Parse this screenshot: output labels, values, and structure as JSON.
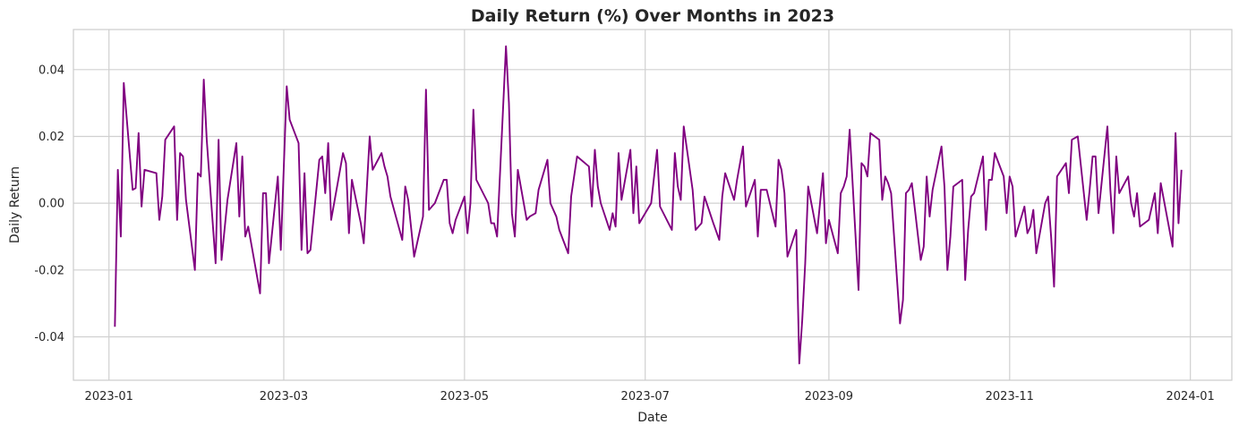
{
  "chart_data": {
    "type": "line",
    "title": "Daily Return (%) Over Months in 2023",
    "xlabel": "Date",
    "ylabel": "Daily Return",
    "xlim": [
      "2022-12-20",
      "2024-01-15"
    ],
    "ylim": [
      -0.053,
      0.052
    ],
    "grid": true,
    "x_tick_labels": [
      "2023-01",
      "2023-03",
      "2023-05",
      "2023-07",
      "2023-09",
      "2023-11",
      "2024-01"
    ],
    "y_tick_labels": [
      "-0.04",
      "-0.02",
      "0.00",
      "0.02",
      "0.04"
    ],
    "y_ticks": [
      -0.04,
      -0.02,
      0.0,
      0.02,
      0.04
    ],
    "series": [
      {
        "color": "#800080",
        "points": [
          [
            "2023-01-03",
            -0.037
          ],
          [
            "2023-01-04",
            0.01
          ],
          [
            "2023-01-05",
            -0.01
          ],
          [
            "2023-01-06",
            0.036
          ],
          [
            "2023-01-09",
            0.004
          ],
          [
            "2023-01-10",
            0.0045
          ],
          [
            "2023-01-11",
            0.021
          ],
          [
            "2023-01-12",
            -0.001
          ],
          [
            "2023-01-13",
            0.01
          ],
          [
            "2023-01-17",
            0.009
          ],
          [
            "2023-01-18",
            -0.005
          ],
          [
            "2023-01-19",
            0.002
          ],
          [
            "2023-01-20",
            0.019
          ],
          [
            "2023-01-23",
            0.023
          ],
          [
            "2023-01-24",
            -0.005
          ],
          [
            "2023-01-25",
            0.015
          ],
          [
            "2023-01-26",
            0.014
          ],
          [
            "2023-01-27",
            0.001
          ],
          [
            "2023-01-30",
            -0.02
          ],
          [
            "2023-01-31",
            0.009
          ],
          [
            "2023-02-01",
            0.008
          ],
          [
            "2023-02-02",
            0.037
          ],
          [
            "2023-02-03",
            0.019
          ],
          [
            "2023-02-06",
            -0.018
          ],
          [
            "2023-02-07",
            0.019
          ],
          [
            "2023-02-08",
            -0.017
          ],
          [
            "2023-02-09",
            -0.008
          ],
          [
            "2023-02-10",
            0.001
          ],
          [
            "2023-02-13",
            0.018
          ],
          [
            "2023-02-14",
            -0.004
          ],
          [
            "2023-02-15",
            0.014
          ],
          [
            "2023-02-16",
            -0.01
          ],
          [
            "2023-02-17",
            -0.007
          ],
          [
            "2023-02-21",
            -0.027
          ],
          [
            "2023-02-22",
            0.003
          ],
          [
            "2023-02-23",
            0.003
          ],
          [
            "2023-02-24",
            -0.018
          ],
          [
            "2023-02-27",
            0.008
          ],
          [
            "2023-02-28",
            -0.014
          ],
          [
            "2023-03-02",
            0.035
          ],
          [
            "2023-03-03",
            0.025
          ],
          [
            "2023-03-06",
            0.018
          ],
          [
            "2023-03-07",
            -0.014
          ],
          [
            "2023-03-08",
            0.009
          ],
          [
            "2023-03-09",
            -0.015
          ],
          [
            "2023-03-10",
            -0.014
          ],
          [
            "2023-03-13",
            0.013
          ],
          [
            "2023-03-14",
            0.014
          ],
          [
            "2023-03-15",
            0.003
          ],
          [
            "2023-03-16",
            0.018
          ],
          [
            "2023-03-17",
            -0.005
          ],
          [
            "2023-03-20",
            0.01
          ],
          [
            "2023-03-21",
            0.015
          ],
          [
            "2023-03-22",
            0.012
          ],
          [
            "2023-03-23",
            -0.009
          ],
          [
            "2023-03-24",
            0.007
          ],
          [
            "2023-03-27",
            -0.006
          ],
          [
            "2023-03-28",
            -0.012
          ],
          [
            "2023-03-29",
            0.004
          ],
          [
            "2023-03-30",
            0.02
          ],
          [
            "2023-03-31",
            0.01
          ],
          [
            "2023-04-03",
            0.015
          ],
          [
            "2023-04-04",
            0.011
          ],
          [
            "2023-04-05",
            0.008
          ],
          [
            "2023-04-06",
            0.002
          ],
          [
            "2023-04-10",
            -0.011
          ],
          [
            "2023-04-11",
            0.005
          ],
          [
            "2023-04-12",
            0.001
          ],
          [
            "2023-04-14",
            -0.016
          ],
          [
            "2023-04-17",
            -0.004
          ],
          [
            "2023-04-18",
            0.034
          ],
          [
            "2023-04-19",
            -0.002
          ],
          [
            "2023-04-21",
            0.0
          ],
          [
            "2023-04-24",
            0.007
          ],
          [
            "2023-04-25",
            0.007
          ],
          [
            "2023-04-26",
            -0.006
          ],
          [
            "2023-04-27",
            -0.009
          ],
          [
            "2023-04-28",
            -0.005
          ],
          [
            "2023-05-01",
            0.002
          ],
          [
            "2023-05-02",
            -0.009
          ],
          [
            "2023-05-03",
            0.0
          ],
          [
            "2023-05-04",
            0.028
          ],
          [
            "2023-05-05",
            0.007
          ],
          [
            "2023-05-09",
            0.0
          ],
          [
            "2023-05-10",
            -0.006
          ],
          [
            "2023-05-11",
            -0.006
          ],
          [
            "2023-05-12",
            -0.01
          ],
          [
            "2023-05-15",
            0.047
          ],
          [
            "2023-05-16",
            0.03
          ],
          [
            "2023-05-17",
            -0.003
          ],
          [
            "2023-05-18",
            -0.01
          ],
          [
            "2023-05-19",
            0.01
          ],
          [
            "2023-05-22",
            -0.005
          ],
          [
            "2023-05-23",
            -0.004
          ],
          [
            "2023-05-25",
            -0.003
          ],
          [
            "2023-05-26",
            0.004
          ],
          [
            "2023-05-29",
            0.013
          ],
          [
            "2023-05-30",
            0.0
          ],
          [
            "2023-06-01",
            -0.004
          ],
          [
            "2023-06-02",
            -0.008
          ],
          [
            "2023-06-05",
            -0.015
          ],
          [
            "2023-06-06",
            0.002
          ],
          [
            "2023-06-07",
            0.008
          ],
          [
            "2023-06-08",
            0.014
          ],
          [
            "2023-06-12",
            0.011
          ],
          [
            "2023-06-13",
            -0.001
          ],
          [
            "2023-06-14",
            0.016
          ],
          [
            "2023-06-15",
            0.005
          ],
          [
            "2023-06-16",
            0.0
          ],
          [
            "2023-06-19",
            -0.008
          ],
          [
            "2023-06-20",
            -0.003
          ],
          [
            "2023-06-21",
            -0.007
          ],
          [
            "2023-06-22",
            0.015
          ],
          [
            "2023-06-23",
            0.001
          ],
          [
            "2023-06-26",
            0.016
          ],
          [
            "2023-06-27",
            -0.003
          ],
          [
            "2023-06-28",
            0.011
          ],
          [
            "2023-06-29",
            -0.006
          ],
          [
            "2023-07-03",
            0.0
          ],
          [
            "2023-07-05",
            0.016
          ],
          [
            "2023-07-06",
            -0.001
          ],
          [
            "2023-07-10",
            -0.008
          ],
          [
            "2023-07-11",
            0.015
          ],
          [
            "2023-07-12",
            0.005
          ],
          [
            "2023-07-13",
            0.001
          ],
          [
            "2023-07-14",
            0.023
          ],
          [
            "2023-07-17",
            0.004
          ],
          [
            "2023-07-18",
            -0.008
          ],
          [
            "2023-07-19",
            -0.007
          ],
          [
            "2023-07-20",
            -0.006
          ],
          [
            "2023-07-21",
            0.002
          ],
          [
            "2023-07-24",
            -0.006
          ],
          [
            "2023-07-26",
            -0.011
          ],
          [
            "2023-07-27",
            0.002
          ],
          [
            "2023-07-28",
            0.009
          ],
          [
            "2023-07-31",
            0.001
          ],
          [
            "2023-08-01",
            0.007
          ],
          [
            "2023-08-03",
            0.017
          ],
          [
            "2023-08-04",
            -0.001
          ],
          [
            "2023-08-07",
            0.007
          ],
          [
            "2023-08-08",
            -0.01
          ],
          [
            "2023-08-09",
            0.004
          ],
          [
            "2023-08-10",
            0.004
          ],
          [
            "2023-08-11",
            0.004
          ],
          [
            "2023-08-14",
            -0.007
          ],
          [
            "2023-08-15",
            0.013
          ],
          [
            "2023-08-16",
            0.01
          ],
          [
            "2023-08-17",
            0.003
          ],
          [
            "2023-08-18",
            -0.016
          ],
          [
            "2023-08-21",
            -0.008
          ],
          [
            "2023-08-22",
            -0.048
          ],
          [
            "2023-08-23",
            -0.035
          ],
          [
            "2023-08-24",
            -0.018
          ],
          [
            "2023-08-25",
            0.005
          ],
          [
            "2023-08-28",
            -0.009
          ],
          [
            "2023-08-29",
            0.0
          ],
          [
            "2023-08-30",
            0.009
          ],
          [
            "2023-08-31",
            -0.012
          ],
          [
            "2023-09-01",
            -0.005
          ],
          [
            "2023-09-04",
            -0.015
          ],
          [
            "2023-09-05",
            0.003
          ],
          [
            "2023-09-06",
            0.005
          ],
          [
            "2023-09-07",
            0.008
          ],
          [
            "2023-09-08",
            0.022
          ],
          [
            "2023-09-11",
            -0.026
          ],
          [
            "2023-09-12",
            0.012
          ],
          [
            "2023-09-13",
            0.011
          ],
          [
            "2023-09-14",
            0.008
          ],
          [
            "2023-09-15",
            0.021
          ],
          [
            "2023-09-18",
            0.019
          ],
          [
            "2023-09-19",
            0.001
          ],
          [
            "2023-09-20",
            0.008
          ],
          [
            "2023-09-21",
            0.006
          ],
          [
            "2023-09-22",
            0.003
          ],
          [
            "2023-09-25",
            -0.036
          ],
          [
            "2023-09-26",
            -0.029
          ],
          [
            "2023-09-27",
            0.003
          ],
          [
            "2023-09-28",
            0.004
          ],
          [
            "2023-09-29",
            0.006
          ],
          [
            "2023-10-02",
            -0.017
          ],
          [
            "2023-10-03",
            -0.013
          ],
          [
            "2023-10-04",
            0.008
          ],
          [
            "2023-10-05",
            -0.004
          ],
          [
            "2023-10-06",
            0.004
          ],
          [
            "2023-10-09",
            0.017
          ],
          [
            "2023-10-10",
            0.005
          ],
          [
            "2023-10-11",
            -0.02
          ],
          [
            "2023-10-12",
            -0.01
          ],
          [
            "2023-10-13",
            0.005
          ],
          [
            "2023-10-16",
            0.007
          ],
          [
            "2023-10-17",
            -0.023
          ],
          [
            "2023-10-18",
            -0.008
          ],
          [
            "2023-10-19",
            0.002
          ],
          [
            "2023-10-20",
            0.003
          ],
          [
            "2023-10-23",
            0.014
          ],
          [
            "2023-10-24",
            -0.008
          ],
          [
            "2023-10-25",
            0.007
          ],
          [
            "2023-10-26",
            0.007
          ],
          [
            "2023-10-27",
            0.015
          ],
          [
            "2023-10-30",
            0.008
          ],
          [
            "2023-10-31",
            -0.003
          ],
          [
            "2023-11-01",
            0.008
          ],
          [
            "2023-11-02",
            0.005
          ],
          [
            "2023-11-03",
            -0.01
          ],
          [
            "2023-11-06",
            -0.001
          ],
          [
            "2023-11-07",
            -0.009
          ],
          [
            "2023-11-08",
            -0.007
          ],
          [
            "2023-11-09",
            -0.002
          ],
          [
            "2023-11-10",
            -0.015
          ],
          [
            "2023-11-13",
            0.0
          ],
          [
            "2023-11-14",
            0.002
          ],
          [
            "2023-11-15",
            -0.01
          ],
          [
            "2023-11-16",
            -0.025
          ],
          [
            "2023-11-17",
            0.008
          ],
          [
            "2023-11-20",
            0.012
          ],
          [
            "2023-11-21",
            0.003
          ],
          [
            "2023-11-22",
            0.019
          ],
          [
            "2023-11-24",
            0.02
          ],
          [
            "2023-11-27",
            -0.005
          ],
          [
            "2023-11-28",
            0.004
          ],
          [
            "2023-11-29",
            0.014
          ],
          [
            "2023-11-30",
            0.014
          ],
          [
            "2023-12-01",
            -0.003
          ],
          [
            "2023-12-04",
            0.023
          ],
          [
            "2023-12-05",
            0.004
          ],
          [
            "2023-12-06",
            -0.009
          ],
          [
            "2023-12-07",
            0.014
          ],
          [
            "2023-12-08",
            0.003
          ],
          [
            "2023-12-11",
            0.008
          ],
          [
            "2023-12-12",
            0.0
          ],
          [
            "2023-12-13",
            -0.004
          ],
          [
            "2023-12-14",
            0.003
          ],
          [
            "2023-12-15",
            -0.007
          ],
          [
            "2023-12-18",
            -0.005
          ],
          [
            "2023-12-19",
            -0.001
          ],
          [
            "2023-12-20",
            0.003
          ],
          [
            "2023-12-21",
            -0.009
          ],
          [
            "2023-12-22",
            0.006
          ],
          [
            "2023-12-26",
            -0.013
          ],
          [
            "2023-12-27",
            0.021
          ],
          [
            "2023-12-28",
            -0.006
          ],
          [
            "2023-12-29",
            0.01
          ]
        ]
      }
    ]
  }
}
